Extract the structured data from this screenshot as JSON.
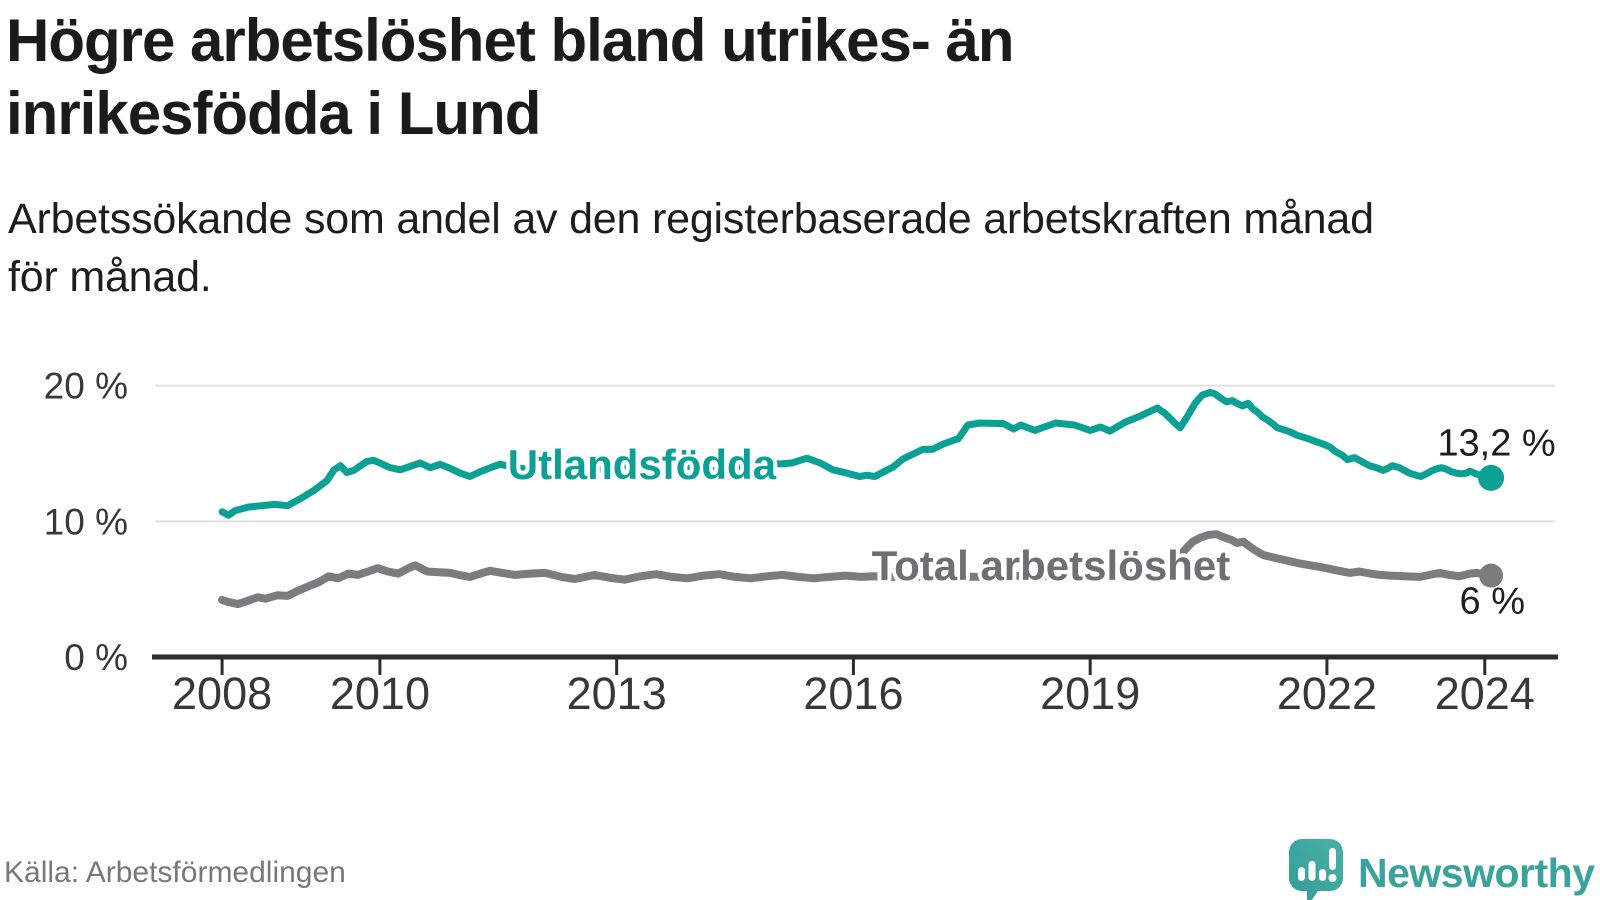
{
  "header": {
    "title_lines": [
      "Högre arbetslöshet bland utrikes- än",
      "inrikesfödda i Lund"
    ],
    "subtitle_lines": [
      "Arbetssökande som andel av den registerbaserade arbetskraften månad",
      "för månad."
    ]
  },
  "footer": {
    "source": "Källa: Arbetsförmedlingen",
    "brand": "Newsworthy"
  },
  "colors": {
    "series_foreign_born": "#0aa094",
    "series_total": "#7b7b80",
    "grid": "#e1e1e1",
    "axis": "#2d2d2d",
    "brand_teal": "#3aa39b",
    "text": "#1b1b1b"
  },
  "chart_data": {
    "type": "line",
    "title": "Högre arbetslöshet bland utrikes- än inrikesfödda i Lund",
    "subtitle": "Arbetssökande som andel av den registerbaserade arbetskraften månad för månad.",
    "xlabel": "",
    "ylabel": "",
    "xlim": [
      2007.15,
      2024.89
    ],
    "ylim": [
      0,
      21.89
    ],
    "grid": true,
    "legend_position": "inline-labels",
    "x_ticks": [
      {
        "value": 2008,
        "label": "2008"
      },
      {
        "value": 2010,
        "label": "2010"
      },
      {
        "value": 2013,
        "label": "2013"
      },
      {
        "value": 2016,
        "label": "2016"
      },
      {
        "value": 2019,
        "label": "2019"
      },
      {
        "value": 2022,
        "label": "2022"
      },
      {
        "value": 2024,
        "label": "2024"
      }
    ],
    "y_ticks": [
      {
        "value": 0,
        "label": "0 %"
      },
      {
        "value": 10,
        "label": "10 %"
      },
      {
        "value": 20,
        "label": "20 %"
      }
    ],
    "series": [
      {
        "name": "Utlandsfödda",
        "color": "#0aa094",
        "stroke_width": 7,
        "dot_radius": 13,
        "end_value_label": "13,2 %",
        "points": [
          [
            2008.0,
            10.7
          ],
          [
            2008.08,
            10.45
          ],
          [
            2008.17,
            10.8
          ],
          [
            2008.33,
            11.05
          ],
          [
            2008.5,
            11.15
          ],
          [
            2008.67,
            11.25
          ],
          [
            2008.83,
            11.15
          ],
          [
            2009.0,
            11.7
          ],
          [
            2009.17,
            12.3
          ],
          [
            2009.33,
            13.0
          ],
          [
            2009.42,
            13.8
          ],
          [
            2009.5,
            14.1
          ],
          [
            2009.58,
            13.6
          ],
          [
            2009.67,
            13.75
          ],
          [
            2009.83,
            14.4
          ],
          [
            2009.92,
            14.5
          ],
          [
            2010.0,
            14.3
          ],
          [
            2010.13,
            13.95
          ],
          [
            2010.26,
            13.8
          ],
          [
            2010.38,
            14.05
          ],
          [
            2010.51,
            14.3
          ],
          [
            2010.64,
            13.95
          ],
          [
            2010.76,
            14.2
          ],
          [
            2010.89,
            13.9
          ],
          [
            2011.02,
            13.55
          ],
          [
            2011.14,
            13.3
          ],
          [
            2011.27,
            13.65
          ],
          [
            2011.4,
            13.95
          ],
          [
            2011.52,
            14.2
          ],
          [
            2011.7,
            14.0
          ],
          [
            2011.9,
            13.8
          ],
          [
            2012.1,
            14.0
          ],
          [
            2012.3,
            14.15
          ],
          [
            2012.5,
            13.9
          ],
          [
            2012.7,
            13.75
          ],
          [
            2012.9,
            13.95
          ],
          [
            2013.1,
            14.1
          ],
          [
            2013.3,
            13.9
          ],
          [
            2013.5,
            13.75
          ],
          [
            2013.7,
            13.9
          ],
          [
            2013.9,
            14.05
          ],
          [
            2014.1,
            13.85
          ],
          [
            2014.3,
            13.7
          ],
          [
            2014.5,
            13.9
          ],
          [
            2014.7,
            14.1
          ],
          [
            2014.9,
            14.2
          ],
          [
            2015.1,
            14.25
          ],
          [
            2015.22,
            14.3
          ],
          [
            2015.41,
            14.65
          ],
          [
            2015.58,
            14.3
          ],
          [
            2015.74,
            13.8
          ],
          [
            2015.92,
            13.55
          ],
          [
            2016.08,
            13.3
          ],
          [
            2016.17,
            13.4
          ],
          [
            2016.27,
            13.3
          ],
          [
            2016.5,
            14.0
          ],
          [
            2016.63,
            14.6
          ],
          [
            2016.88,
            15.3
          ],
          [
            2017.0,
            15.3
          ],
          [
            2017.14,
            15.7
          ],
          [
            2017.33,
            16.1
          ],
          [
            2017.45,
            17.1
          ],
          [
            2017.6,
            17.25
          ],
          [
            2017.9,
            17.2
          ],
          [
            2018.03,
            16.8
          ],
          [
            2018.12,
            17.1
          ],
          [
            2018.3,
            16.7
          ],
          [
            2018.56,
            17.25
          ],
          [
            2018.8,
            17.1
          ],
          [
            2019.0,
            16.7
          ],
          [
            2019.13,
            16.95
          ],
          [
            2019.25,
            16.65
          ],
          [
            2019.44,
            17.3
          ],
          [
            2019.63,
            17.75
          ],
          [
            2019.85,
            18.35
          ],
          [
            2019.95,
            17.95
          ],
          [
            2020.08,
            17.2
          ],
          [
            2020.14,
            16.9
          ],
          [
            2020.23,
            17.7
          ],
          [
            2020.33,
            18.7
          ],
          [
            2020.42,
            19.3
          ],
          [
            2020.52,
            19.5
          ],
          [
            2020.58,
            19.4
          ],
          [
            2020.65,
            19.1
          ],
          [
            2020.73,
            18.8
          ],
          [
            2020.8,
            18.9
          ],
          [
            2020.86,
            18.7
          ],
          [
            2020.93,
            18.5
          ],
          [
            2021.0,
            18.7
          ],
          [
            2021.06,
            18.3
          ],
          [
            2021.12,
            18.05
          ],
          [
            2021.18,
            17.7
          ],
          [
            2021.25,
            17.45
          ],
          [
            2021.31,
            17.2
          ],
          [
            2021.37,
            16.9
          ],
          [
            2021.45,
            16.75
          ],
          [
            2021.53,
            16.6
          ],
          [
            2021.62,
            16.35
          ],
          [
            2021.7,
            16.2
          ],
          [
            2021.78,
            16.05
          ],
          [
            2021.87,
            15.85
          ],
          [
            2021.95,
            15.7
          ],
          [
            2022.03,
            15.5
          ],
          [
            2022.12,
            15.1
          ],
          [
            2022.2,
            14.85
          ],
          [
            2022.26,
            14.55
          ],
          [
            2022.35,
            14.7
          ],
          [
            2022.44,
            14.4
          ],
          [
            2022.54,
            14.1
          ],
          [
            2022.63,
            13.95
          ],
          [
            2022.71,
            13.75
          ],
          [
            2022.77,
            13.9
          ],
          [
            2022.83,
            14.1
          ],
          [
            2022.92,
            13.95
          ],
          [
            2022.98,
            13.75
          ],
          [
            2023.05,
            13.55
          ],
          [
            2023.13,
            13.4
          ],
          [
            2023.19,
            13.3
          ],
          [
            2023.26,
            13.5
          ],
          [
            2023.32,
            13.7
          ],
          [
            2023.38,
            13.85
          ],
          [
            2023.45,
            13.95
          ],
          [
            2023.51,
            13.85
          ],
          [
            2023.58,
            13.65
          ],
          [
            2023.64,
            13.55
          ],
          [
            2023.7,
            13.5
          ],
          [
            2023.77,
            13.55
          ],
          [
            2023.81,
            13.7
          ],
          [
            2023.87,
            13.55
          ],
          [
            2023.94,
            13.4
          ],
          [
            2024.0,
            13.3
          ],
          [
            2024.08,
            13.2
          ]
        ]
      },
      {
        "name": "Total arbetslöshet",
        "color": "#7b7b80",
        "stroke_width": 8,
        "dot_radius": 12,
        "end_value_label": "6 %",
        "points": [
          [
            2008.0,
            4.2
          ],
          [
            2008.08,
            4.05
          ],
          [
            2008.2,
            3.9
          ],
          [
            2008.33,
            4.15
          ],
          [
            2008.45,
            4.4
          ],
          [
            2008.55,
            4.3
          ],
          [
            2008.7,
            4.55
          ],
          [
            2008.83,
            4.5
          ],
          [
            2008.97,
            4.9
          ],
          [
            2009.09,
            5.2
          ],
          [
            2009.22,
            5.5
          ],
          [
            2009.35,
            5.95
          ],
          [
            2009.47,
            5.8
          ],
          [
            2009.6,
            6.15
          ],
          [
            2009.72,
            6.05
          ],
          [
            2009.85,
            6.3
          ],
          [
            2009.97,
            6.55
          ],
          [
            2010.1,
            6.3
          ],
          [
            2010.23,
            6.15
          ],
          [
            2010.38,
            6.6
          ],
          [
            2010.45,
            6.75
          ],
          [
            2010.6,
            6.3
          ],
          [
            2010.75,
            6.25
          ],
          [
            2010.89,
            6.2
          ],
          [
            2011.0,
            6.05
          ],
          [
            2011.14,
            5.9
          ],
          [
            2011.3,
            6.2
          ],
          [
            2011.4,
            6.35
          ],
          [
            2011.55,
            6.2
          ],
          [
            2011.71,
            6.05
          ],
          [
            2011.9,
            6.15
          ],
          [
            2012.09,
            6.2
          ],
          [
            2012.3,
            5.9
          ],
          [
            2012.47,
            5.75
          ],
          [
            2012.72,
            6.05
          ],
          [
            2012.9,
            5.85
          ],
          [
            2013.1,
            5.7
          ],
          [
            2013.3,
            5.95
          ],
          [
            2013.5,
            6.1
          ],
          [
            2013.7,
            5.9
          ],
          [
            2013.9,
            5.8
          ],
          [
            2014.1,
            6.0
          ],
          [
            2014.3,
            6.1
          ],
          [
            2014.5,
            5.9
          ],
          [
            2014.7,
            5.8
          ],
          [
            2014.9,
            5.95
          ],
          [
            2015.1,
            6.05
          ],
          [
            2015.3,
            5.9
          ],
          [
            2015.5,
            5.8
          ],
          [
            2015.7,
            5.9
          ],
          [
            2015.9,
            6.0
          ],
          [
            2016.1,
            5.9
          ],
          [
            2016.25,
            5.95
          ],
          [
            2016.5,
            5.9
          ],
          [
            2016.75,
            5.95
          ],
          [
            2017.0,
            5.9
          ],
          [
            2017.3,
            5.95
          ],
          [
            2017.6,
            5.9
          ],
          [
            2017.9,
            5.95
          ],
          [
            2018.2,
            6.0
          ],
          [
            2018.5,
            5.95
          ],
          [
            2018.8,
            6.0
          ],
          [
            2019.0,
            6.05
          ],
          [
            2019.2,
            6.1
          ],
          [
            2019.4,
            6.15
          ],
          [
            2019.6,
            6.2
          ],
          [
            2019.8,
            6.3
          ],
          [
            2019.95,
            6.6
          ],
          [
            2020.1,
            7.2
          ],
          [
            2020.2,
            7.9
          ],
          [
            2020.3,
            8.5
          ],
          [
            2020.4,
            8.8
          ],
          [
            2020.5,
            9.0
          ],
          [
            2020.6,
            9.05
          ],
          [
            2020.73,
            8.75
          ],
          [
            2020.8,
            8.6
          ],
          [
            2020.86,
            8.4
          ],
          [
            2020.94,
            8.5
          ],
          [
            2021.03,
            8.1
          ],
          [
            2021.12,
            7.75
          ],
          [
            2021.2,
            7.5
          ],
          [
            2021.35,
            7.3
          ],
          [
            2021.5,
            7.1
          ],
          [
            2021.65,
            6.9
          ],
          [
            2021.8,
            6.75
          ],
          [
            2021.95,
            6.6
          ],
          [
            2022.03,
            6.5
          ],
          [
            2022.15,
            6.35
          ],
          [
            2022.29,
            6.2
          ],
          [
            2022.41,
            6.3
          ],
          [
            2022.55,
            6.15
          ],
          [
            2022.67,
            6.05
          ],
          [
            2022.8,
            6.0
          ],
          [
            2022.92,
            5.97
          ],
          [
            2023.05,
            5.93
          ],
          [
            2023.18,
            5.9
          ],
          [
            2023.3,
            6.05
          ],
          [
            2023.43,
            6.2
          ],
          [
            2023.55,
            6.05
          ],
          [
            2023.68,
            5.95
          ],
          [
            2023.81,
            6.15
          ],
          [
            2023.9,
            6.2
          ],
          [
            2024.0,
            6.1
          ],
          [
            2024.08,
            6.0
          ]
        ]
      }
    ],
    "annotations": [
      {
        "id": "series-label-utlandsfodda",
        "text": "Utlandsfödda",
        "style": "label-teal",
        "x": 2011.62,
        "y": 14.15
      },
      {
        "id": "series-label-total",
        "text": "Total arbetslöshet",
        "style": "label-gray",
        "x": 2016.23,
        "y": 6.7
      },
      {
        "id": "value-label-utlandsfodda",
        "text": "13,2 %",
        "style": "label-value",
        "x": 2023.4,
        "y": 15.72
      },
      {
        "id": "value-label-total",
        "text": "6 %",
        "style": "label-value",
        "x": 2023.68,
        "y": 4.05
      }
    ]
  }
}
